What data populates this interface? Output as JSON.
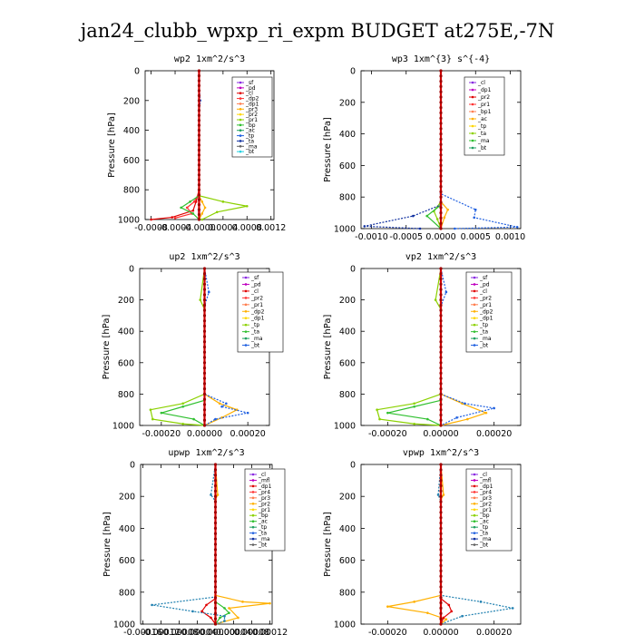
{
  "title": "jan24_clubb_wpxp_ri_expm  BUDGET at275E,-7N",
  "ylabel": "Pressure [hPa]",
  "chart_data": [
    {
      "type": "line",
      "title": "wp2  1xm^2/s^3",
      "ylabel": "Pressure [hPa]",
      "ylim": [
        1000,
        0
      ],
      "xlim": [
        -0.0009,
        0.00125
      ],
      "xticks": [
        "-0.0008",
        "-0.0004",
        "-0.0000",
        "0.0004",
        "0.0008",
        "0.0012"
      ],
      "xtick_values": [
        -0.0008,
        -0.0004,
        0.0,
        0.0004,
        0.0008,
        0.0012
      ],
      "yticks": [
        0,
        200,
        400,
        600,
        800,
        1000
      ],
      "legend": [
        "_sf",
        "_pd",
        "_cl",
        "_dp2",
        "_dp1",
        "_pr3",
        "_pr2",
        "_pr1",
        "_bp",
        "_ac",
        "_tp",
        "_ta",
        "_ma",
        "_bt"
      ],
      "series": [
        {
          "name": "_sf",
          "color": "#8a2be2",
          "x": [
            0,
            0,
            0,
            0,
            0,
            0
          ],
          "y": [
            0,
            200,
            600,
            850,
            950,
            1000
          ]
        },
        {
          "name": "_cl",
          "color": "#e00000",
          "x": [
            0,
            0,
            -5e-05,
            -0.0001,
            -0.00045,
            -0.0008
          ],
          "y": [
            0,
            800,
            880,
            940,
            985,
            1000
          ]
        },
        {
          "name": "_dp1",
          "color": "#ff3333",
          "x": [
            0,
            0,
            -8e-05,
            -0.0002,
            -0.00012,
            -0.0004
          ],
          "y": [
            0,
            820,
            880,
            920,
            960,
            990
          ]
        },
        {
          "name": "_pr2",
          "color": "#ffb000",
          "x": [
            0,
            0,
            5e-05,
            0.0001,
            5e-05,
            0
          ],
          "y": [
            0,
            840,
            880,
            920,
            960,
            1000
          ]
        },
        {
          "name": "_pr1",
          "color": "#8bd100",
          "x": [
            0,
            0,
            0.0004,
            0.0008,
            0.0003,
            5e-05
          ],
          "y": [
            0,
            840,
            880,
            910,
            950,
            1000
          ]
        },
        {
          "name": "_bp",
          "color": "#30c030",
          "x": [
            0,
            0,
            -0.00015,
            -0.0003,
            -0.0001,
            0
          ],
          "y": [
            0,
            840,
            880,
            920,
            960,
            1000
          ]
        },
        {
          "name": "_tp",
          "color": "#2060e0",
          "x": [
            0,
            0,
            2e-05,
            0,
            0,
            0
          ],
          "y": [
            0,
            100,
            200,
            300,
            900,
            1000
          ]
        },
        {
          "name": "_bt",
          "color": "#20d0e0",
          "x": [
            0,
            0,
            0,
            0
          ],
          "y": [
            0,
            400,
            800,
            1000
          ]
        }
      ]
    },
    {
      "type": "line",
      "title": "wp3  1xm^{3} s^{-4}",
      "ylabel": "Pressure [hPa]",
      "ylim": [
        1000,
        0
      ],
      "xlim": [
        -0.00115,
        0.00115
      ],
      "xticks": [
        "-0.0010",
        "-0.0005",
        "0.0000",
        "0.0005",
        "0.0010"
      ],
      "xtick_values": [
        -0.001,
        -0.0005,
        0.0,
        0.0005,
        0.001
      ],
      "yticks": [
        0,
        200,
        400,
        600,
        800,
        1000
      ],
      "legend": [
        "_cl",
        "_dp1",
        "_pr2",
        "_pr1",
        "_bp1",
        "_ac",
        "_tp",
        "_ta",
        "_ma",
        "_bt"
      ],
      "series": [
        {
          "name": "_cl",
          "color": "#e00000",
          "x": [
            0,
            0,
            0,
            0
          ],
          "y": [
            0,
            400,
            800,
            1000
          ]
        },
        {
          "name": "_pr2",
          "color": "#ffb000",
          "x": [
            0,
            0,
            0.0001,
            5e-05,
            0
          ],
          "y": [
            0,
            830,
            880,
            930,
            1000
          ]
        },
        {
          "name": "_pr1",
          "color": "#8bd100",
          "x": [
            0,
            0,
            -0.0001,
            -5e-05,
            0
          ],
          "y": [
            0,
            830,
            890,
            940,
            1000
          ]
        },
        {
          "name": "_bp1",
          "color": "#30c030",
          "x": [
            0,
            0,
            -0.0002,
            0
          ],
          "y": [
            0,
            850,
            920,
            1000
          ]
        },
        {
          "name": "_tp",
          "color": "#2060e0",
          "x": [
            0,
            0,
            0.0005,
            0.00048,
            0.0011,
            0.0002
          ],
          "y": [
            0,
            780,
            880,
            930,
            990,
            1000
          ]
        },
        {
          "name": "_ta",
          "color": "#1030a0",
          "x": [
            0,
            0,
            -0.0004,
            -0.0011,
            -0.0003
          ],
          "y": [
            0,
            850,
            920,
            985,
            1000
          ]
        }
      ]
    },
    {
      "type": "line",
      "title": "up2  1xm^2/s^3",
      "ylabel": "Pressure [hPa]",
      "ylim": [
        1000,
        0
      ],
      "xlim": [
        -0.0003,
        0.0003
      ],
      "xticks": [
        "-0.00020",
        "0.00000",
        "0.00020"
      ],
      "xtick_values": [
        -0.0002,
        0.0,
        0.0002
      ],
      "yticks": [
        0,
        200,
        400,
        600,
        800,
        1000
      ],
      "legend": [
        "_sf",
        "_pd",
        "_cl",
        "_pr2",
        "_pr1",
        "_dp2",
        "_dp1",
        "_tp",
        "_ta",
        "_ma",
        "_bt"
      ],
      "series": [
        {
          "name": "_cl",
          "color": "#e00000",
          "x": [
            0,
            0,
            0,
            0
          ],
          "y": [
            0,
            400,
            800,
            1000
          ]
        },
        {
          "name": "_pr2",
          "color": "#ffb000",
          "x": [
            0,
            0,
            7e-05,
            0.00015,
            8e-05,
            0
          ],
          "y": [
            0,
            800,
            860,
            900,
            950,
            1000
          ]
        },
        {
          "name": "_pr1",
          "color": "#8bd100",
          "x": [
            0,
            -2e-05,
            0,
            0,
            -0.0001,
            -0.00025,
            -0.00024,
            -0.0001,
            0
          ],
          "y": [
            0,
            200,
            260,
            800,
            860,
            900,
            960,
            990,
            1000
          ]
        },
        {
          "name": "_dp1",
          "color": "#30c030",
          "x": [
            0,
            0,
            -0.0001,
            -0.0002,
            -5e-05,
            0
          ],
          "y": [
            0,
            840,
            880,
            920,
            960,
            1000
          ]
        },
        {
          "name": "_tp",
          "color": "#2060e0",
          "x": [
            0,
            2e-05,
            0,
            0,
            0.0001,
            8e-05,
            0.0002,
            5e-05,
            0
          ],
          "y": [
            0,
            150,
            240,
            800,
            860,
            880,
            920,
            960,
            1000
          ]
        }
      ]
    },
    {
      "type": "line",
      "title": "vp2  1xm^2/s^3",
      "ylabel": "Pressure [hPa]",
      "ylim": [
        1000,
        0
      ],
      "xlim": [
        -0.0003,
        0.0003
      ],
      "xticks": [
        "-0.00020",
        "0.00000",
        "0.00020"
      ],
      "xtick_values": [
        -0.0002,
        0.0,
        0.0002
      ],
      "yticks": [
        0,
        200,
        400,
        600,
        800,
        1000
      ],
      "legend": [
        "_sf",
        "_pd",
        "_cl",
        "_pr2",
        "_pr1",
        "_dp2",
        "_dp1",
        "_tp",
        "_ta",
        "_ma",
        "_bt"
      ],
      "series": [
        {
          "name": "_cl",
          "color": "#e00000",
          "x": [
            0,
            0,
            0,
            0
          ],
          "y": [
            0,
            400,
            800,
            1000
          ]
        },
        {
          "name": "_pr2",
          "color": "#ffb000",
          "x": [
            0,
            0,
            8e-05,
            0.00017,
            0.0001,
            0
          ],
          "y": [
            0,
            800,
            860,
            920,
            960,
            1000
          ]
        },
        {
          "name": "_pr1",
          "color": "#8bd100",
          "x": [
            0,
            -2e-05,
            0,
            0,
            -0.0001,
            -0.00024,
            -0.00023,
            -0.0001,
            0
          ],
          "y": [
            0,
            200,
            260,
            800,
            860,
            900,
            960,
            990,
            1000
          ]
        },
        {
          "name": "_dp1",
          "color": "#30c030",
          "x": [
            0,
            0,
            -0.0001,
            -0.0002,
            -5e-05,
            0
          ],
          "y": [
            0,
            840,
            880,
            920,
            960,
            1000
          ]
        },
        {
          "name": "_tp",
          "color": "#2060e0",
          "x": [
            0,
            2e-05,
            0,
            0,
            9e-05,
            0.0002,
            6e-05,
            0
          ],
          "y": [
            0,
            150,
            240,
            800,
            860,
            890,
            950,
            1000
          ]
        }
      ]
    },
    {
      "type": "line",
      "title": "upwp  1xm^2/s^3",
      "ylabel": "Pressure [hPa]",
      "ylim": [
        1000,
        0
      ],
      "xlim": [
        -0.000165,
        0.000125
      ],
      "xticks": [
        "-0.00016",
        "-0.00012",
        "-0.00008",
        "-0.00004",
        "-0.00000",
        "0.00004",
        "0.00008",
        "0.00012"
      ],
      "xtick_values": [
        -0.00016,
        -0.00012,
        -8e-05,
        -4e-05,
        0.0,
        4e-05,
        8e-05,
        0.00012
      ],
      "yticks": [
        0,
        200,
        400,
        600,
        800,
        1000
      ],
      "legend": [
        "_cl",
        "_mfl",
        "_dp1",
        "_pr4",
        "_pr3",
        "_pr2",
        "_pr1",
        "_bp",
        "_ac",
        "_tp",
        "_ta",
        "_ma",
        "_bt"
      ],
      "series": [
        {
          "name": "_mfl",
          "color": "#8a2be2",
          "x": [
            0,
            0,
            0,
            0
          ],
          "y": [
            0,
            400,
            800,
            1000
          ]
        },
        {
          "name": "_pr2",
          "color": "#ffb000",
          "x": [
            0,
            5e-06,
            0,
            0,
            6e-05,
            0.00012,
            3e-05,
            5e-05,
            0
          ],
          "y": [
            0,
            190,
            220,
            820,
            860,
            870,
            900,
            960,
            1000
          ]
        },
        {
          "name": "_dp1",
          "color": "#e00000",
          "x": [
            0,
            0,
            -2e-05,
            -3e-05,
            -1e-05,
            0
          ],
          "y": [
            0,
            840,
            880,
            920,
            960,
            1000
          ]
        },
        {
          "name": "_bp",
          "color": "#30c030",
          "x": [
            0,
            0,
            2e-05,
            3e-05,
            1e-05,
            0
          ],
          "y": [
            0,
            860,
            900,
            930,
            960,
            1000
          ]
        },
        {
          "name": "_tp",
          "color": "#2080b0",
          "x": [
            0,
            -1e-05,
            0,
            0,
            -0.00014,
            -5e-05,
            2e-05,
            2e-05,
            0
          ],
          "y": [
            0,
            190,
            230,
            830,
            880,
            920,
            950,
            980,
            1000
          ]
        }
      ]
    },
    {
      "type": "line",
      "title": "vpwp  1xm^2/s^3",
      "ylabel": "Pressure [hPa]",
      "ylim": [
        1000,
        0
      ],
      "xlim": [
        -0.0003,
        0.0003
      ],
      "xticks": [
        "-0.00020",
        "0.00000",
        "0.00020"
      ],
      "xtick_values": [
        -0.0002,
        0.0,
        0.0002
      ],
      "yticks": [
        0,
        200,
        400,
        600,
        800,
        1000
      ],
      "legend": [
        "_cl",
        "_mfl",
        "_dp1",
        "_pr4",
        "_pr3",
        "_pr2",
        "_pr1",
        "_bp",
        "_ac",
        "_tp",
        "_ta",
        "_ma",
        "_bt"
      ],
      "series": [
        {
          "name": "_mfl",
          "color": "#8a2be2",
          "x": [
            0,
            0,
            0,
            0
          ],
          "y": [
            0,
            400,
            800,
            1000
          ]
        },
        {
          "name": "_pr2",
          "color": "#ffb000",
          "x": [
            0,
            1e-05,
            0,
            0,
            -0.0001,
            -0.0002,
            -5e-05,
            2e-05,
            0
          ],
          "y": [
            0,
            190,
            220,
            820,
            860,
            890,
            930,
            970,
            1000
          ]
        },
        {
          "name": "_dp1",
          "color": "#e00000",
          "x": [
            0,
            0,
            3e-05,
            4e-05,
            1e-05,
            0
          ],
          "y": [
            0,
            840,
            880,
            920,
            960,
            1000
          ]
        },
        {
          "name": "_tp",
          "color": "#2080b0",
          "x": [
            0,
            -1e-05,
            0,
            0,
            0.00015,
            0.00027,
            8e-05,
            0
          ],
          "y": [
            0,
            190,
            230,
            820,
            860,
            900,
            950,
            1000
          ]
        }
      ]
    }
  ]
}
